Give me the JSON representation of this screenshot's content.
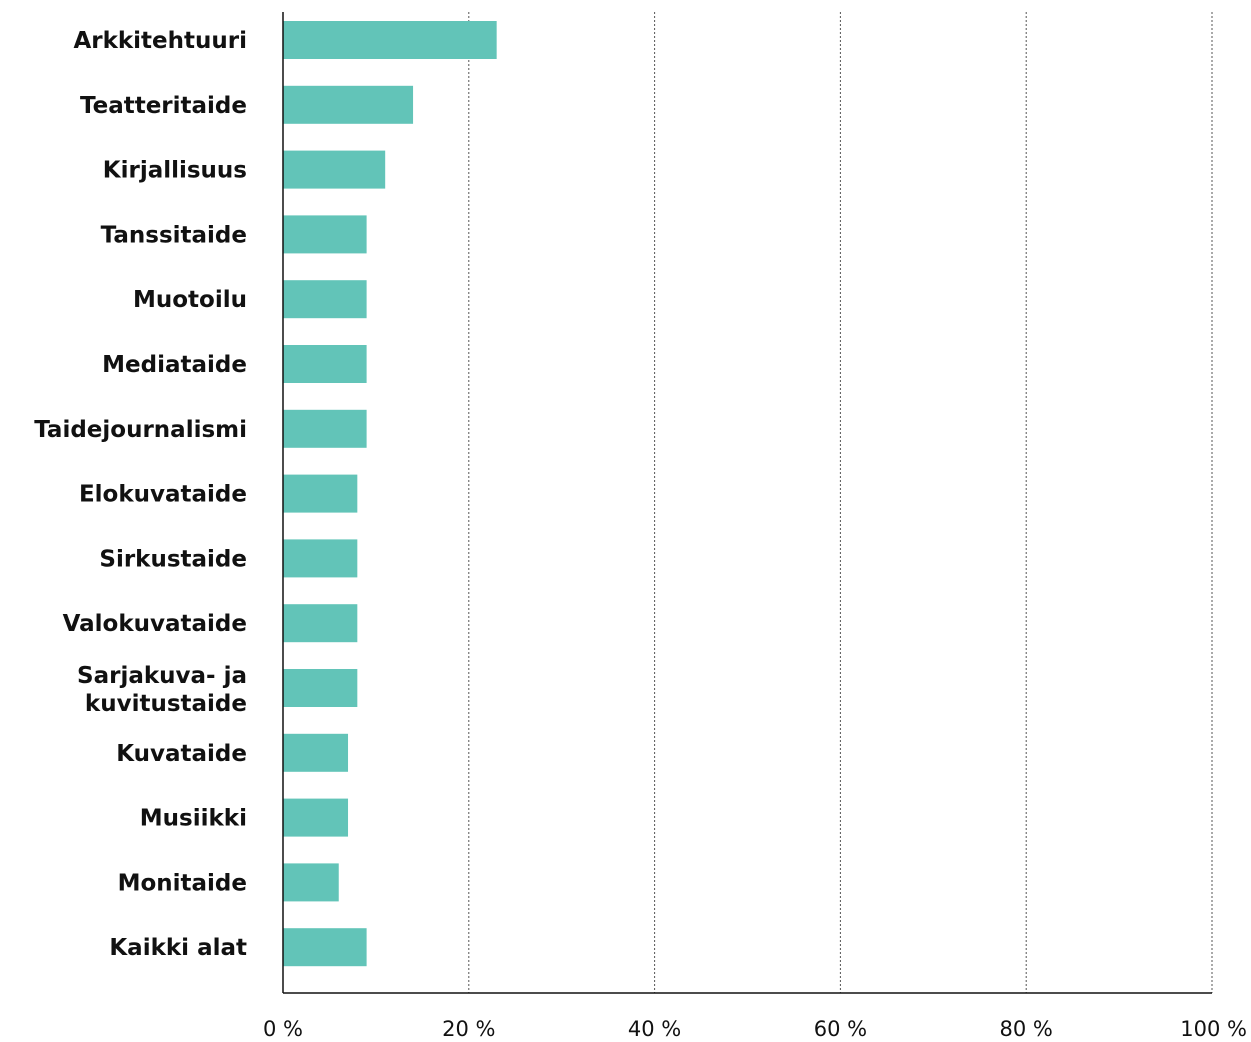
{
  "chart_data": {
    "type": "bar",
    "orientation": "horizontal",
    "categories": [
      "Arkkitehtuuri",
      "Teatteritaide",
      "Kirjallisuus",
      "Tanssitaide",
      "Muotoilu",
      "Mediataide",
      "Taidejournalismi",
      "Elokuvataide",
      "Sirkustaide",
      "Valokuvataide",
      "Sarjakuva- ja kuvitustaide",
      "Kuvataide",
      "Musiikki",
      "Monitaide",
      "Kaikki alat"
    ],
    "values": [
      23,
      14,
      11,
      9,
      9,
      9,
      9,
      8,
      8,
      8,
      8,
      7,
      7,
      6,
      9
    ],
    "xlim": [
      0,
      100
    ],
    "xticks": [
      0,
      20,
      40,
      60,
      80,
      100
    ],
    "xtick_labels": [
      "0 %",
      "20 %",
      "40 %",
      "60 %",
      "80 %",
      "100 %"
    ],
    "title": "",
    "xlabel": "",
    "ylabel": "",
    "grid": "vertical dashed",
    "bar_color": "#62c4b8",
    "legend": "none"
  }
}
